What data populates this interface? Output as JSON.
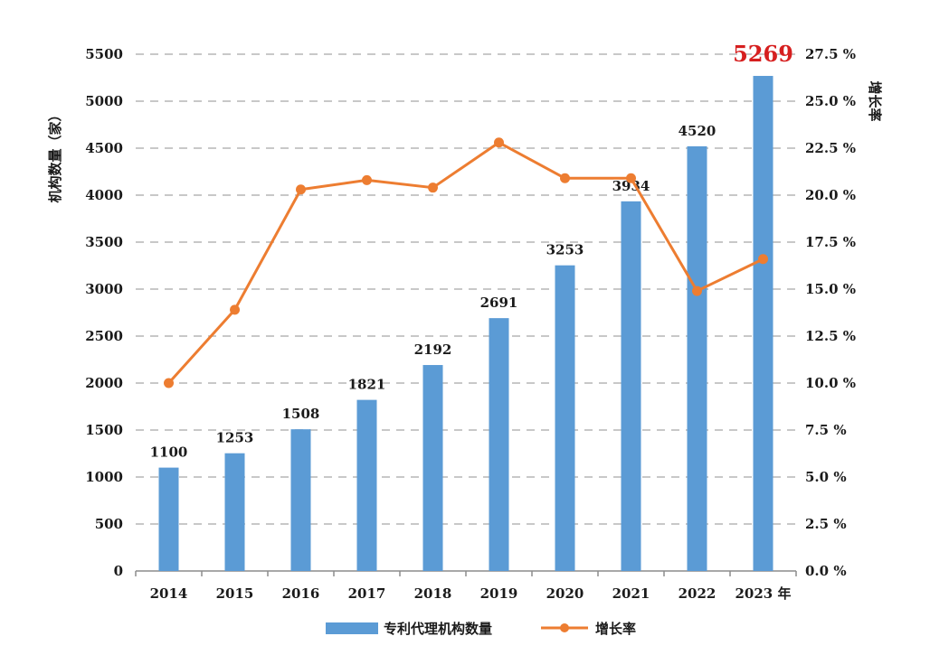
{
  "chart_data": {
    "type": "bar+line",
    "title": "",
    "categories": [
      "2014",
      "2015",
      "2016",
      "2017",
      "2018",
      "2019",
      "2020",
      "2021",
      "2022",
      "2023"
    ],
    "x_unit_suffix": "年",
    "series": [
      {
        "name": "专利代理机构数量",
        "kind": "bar",
        "axis": "left",
        "color": "#5b9bd5",
        "values": [
          1100,
          1253,
          1508,
          1821,
          2192,
          2691,
          3253,
          3934,
          4520,
          5269
        ],
        "labels": [
          "1100",
          "1253",
          "1508",
          "1821",
          "2192",
          "2691",
          "3253",
          "3934",
          "4520",
          "5269"
        ]
      },
      {
        "name": "增长率",
        "kind": "line",
        "axis": "right",
        "color": "#ed7d31",
        "values": [
          10.0,
          13.9,
          20.3,
          20.8,
          20.4,
          22.8,
          20.9,
          20.9,
          14.9,
          16.6
        ]
      }
    ],
    "highlight": {
      "index": 9,
      "color": "#d61f1f"
    },
    "ylabel_left": "机构数量（家）",
    "ylabel_right": "增长率",
    "ylim_left": [
      0,
      5500
    ],
    "yticks_left": [
      "0",
      "500",
      "1000",
      "1500",
      "2000",
      "2500",
      "3000",
      "3500",
      "4000",
      "4500",
      "5000",
      "5500"
    ],
    "ylim_right": [
      0,
      27.5
    ],
    "yticks_right": [
      "0.0 %",
      "2.5 %",
      "5.0 %",
      "7.5 %",
      "10.0 %",
      "12.5 %",
      "15.0 %",
      "17.5 %",
      "20.0 %",
      "22.5 %",
      "25.0 %",
      "27.5 %"
    ],
    "grid": true,
    "grid_color": "#c8c8c8",
    "legend_position": "bottom-center"
  }
}
